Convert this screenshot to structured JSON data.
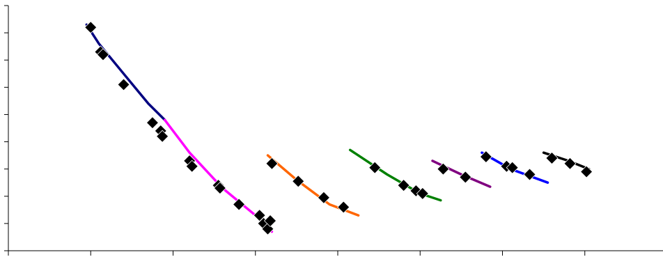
{
  "chart_data": {
    "type": "scatter",
    "title": "",
    "xlabel": "",
    "ylabel": "",
    "grid": false,
    "legend": "none",
    "xlim": [
      0,
      8
    ],
    "ylim": [
      0,
      9
    ],
    "x_ticks": [
      0,
      1,
      2,
      3,
      4,
      5,
      6,
      7,
      8
    ],
    "y_ticks": [
      0,
      1,
      2,
      3,
      4,
      5,
      6,
      7,
      8,
      9
    ],
    "marker_color": "#000000",
    "series": [
      {
        "color": "#000080",
        "line": [
          [
            0.95,
            8.3
          ],
          [
            1.1,
            7.6
          ],
          [
            1.4,
            6.5
          ],
          [
            1.7,
            5.4
          ],
          [
            1.9,
            4.8
          ]
        ],
        "points": [
          [
            1.0,
            8.2
          ],
          [
            1.12,
            7.3
          ],
          [
            1.15,
            7.2
          ],
          [
            1.4,
            6.1
          ],
          [
            1.75,
            4.7
          ],
          [
            1.85,
            4.4
          ],
          [
            1.87,
            4.2
          ]
        ]
      },
      {
        "color": "#ff00ff",
        "line": [
          [
            1.9,
            4.8
          ],
          [
            2.2,
            3.6
          ],
          [
            2.6,
            2.3
          ],
          [
            3.0,
            1.3
          ],
          [
            3.2,
            0.7
          ]
        ],
        "points": [
          [
            2.2,
            3.3
          ],
          [
            2.23,
            3.1
          ],
          [
            2.55,
            2.4
          ],
          [
            2.57,
            2.3
          ],
          [
            2.8,
            1.7
          ],
          [
            3.05,
            1.3
          ],
          [
            3.1,
            1.0
          ],
          [
            3.15,
            0.8
          ],
          [
            3.18,
            1.1
          ]
        ]
      },
      {
        "color": "#ff6600",
        "line": [
          [
            3.15,
            3.5
          ],
          [
            3.5,
            2.6
          ],
          [
            3.9,
            1.7
          ],
          [
            4.25,
            1.3
          ]
        ],
        "points": [
          [
            3.2,
            3.2
          ],
          [
            3.52,
            2.55
          ],
          [
            3.83,
            1.95
          ],
          [
            4.07,
            1.6
          ]
        ]
      },
      {
        "color": "#008000",
        "line": [
          [
            4.15,
            3.7
          ],
          [
            4.6,
            2.8
          ],
          [
            5.0,
            2.1
          ],
          [
            5.25,
            1.85
          ]
        ],
        "points": [
          [
            4.45,
            3.05
          ],
          [
            4.8,
            2.4
          ],
          [
            4.95,
            2.2
          ],
          [
            5.03,
            2.1
          ]
        ]
      },
      {
        "color": "#800080",
        "line": [
          [
            5.15,
            3.3
          ],
          [
            5.5,
            2.8
          ],
          [
            5.85,
            2.35
          ]
        ],
        "points": [
          [
            5.28,
            3.0
          ],
          [
            5.55,
            2.7
          ]
        ]
      },
      {
        "color": "#0000ff",
        "line": [
          [
            5.75,
            3.6
          ],
          [
            6.1,
            3.0
          ],
          [
            6.55,
            2.5
          ]
        ],
        "points": [
          [
            5.8,
            3.45
          ],
          [
            6.05,
            3.1
          ],
          [
            6.12,
            3.05
          ],
          [
            6.33,
            2.8
          ]
        ]
      },
      {
        "color": "#000000",
        "line": [
          [
            6.5,
            3.6
          ],
          [
            6.8,
            3.3
          ],
          [
            7.05,
            3.0
          ]
        ],
        "points": [
          [
            6.6,
            3.4
          ],
          [
            6.82,
            3.2
          ],
          [
            7.02,
            2.9
          ]
        ]
      }
    ]
  }
}
